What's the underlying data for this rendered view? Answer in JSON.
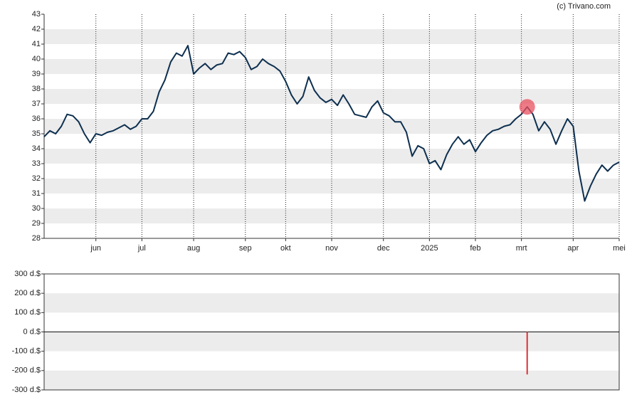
{
  "source": "(c) Trivano.com",
  "chart_data": [
    {
      "type": "line",
      "color": "#0d2f4f",
      "highlight_index": 84,
      "highlight_color": "#e8505f",
      "categories": [
        null,
        null,
        null,
        null,
        null,
        null,
        null,
        null,
        null,
        "jun",
        null,
        null,
        null,
        null,
        null,
        null,
        null,
        "jul",
        null,
        null,
        null,
        null,
        null,
        null,
        null,
        null,
        "aug",
        null,
        null,
        null,
        null,
        null,
        null,
        null,
        null,
        "sep",
        null,
        null,
        null,
        null,
        null,
        null,
        "okt",
        null,
        null,
        null,
        null,
        null,
        null,
        null,
        "nov",
        null,
        null,
        null,
        null,
        null,
        null,
        null,
        null,
        "dec",
        null,
        null,
        null,
        null,
        null,
        null,
        null,
        "2025",
        null,
        null,
        null,
        null,
        null,
        null,
        null,
        "feb",
        null,
        null,
        null,
        null,
        null,
        null,
        null,
        "mrt",
        null,
        null,
        null,
        null,
        null,
        null,
        null,
        null,
        "apr",
        null,
        null,
        null,
        null,
        null,
        null,
        null,
        "mei"
      ],
      "values": [
        34.8,
        35.2,
        35.0,
        35.5,
        36.3,
        36.2,
        35.8,
        35.0,
        34.4,
        35.0,
        34.9,
        35.1,
        35.2,
        35.4,
        35.6,
        35.3,
        35.5,
        36.0,
        36.0,
        36.5,
        37.8,
        38.6,
        39.8,
        40.4,
        40.2,
        40.9,
        39.0,
        39.4,
        39.7,
        39.3,
        39.6,
        39.7,
        40.4,
        40.3,
        40.5,
        40.1,
        39.3,
        39.5,
        40.0,
        39.7,
        39.5,
        39.2,
        38.5,
        37.6,
        37.0,
        37.5,
        38.8,
        37.9,
        37.4,
        37.1,
        37.3,
        36.9,
        37.6,
        37.0,
        36.3,
        36.2,
        36.1,
        36.8,
        37.2,
        36.4,
        36.2,
        35.8,
        35.8,
        35.1,
        33.5,
        34.2,
        34.0,
        33.0,
        33.2,
        32.6,
        33.6,
        34.3,
        34.8,
        34.3,
        34.6,
        33.8,
        34.4,
        34.9,
        35.2,
        35.3,
        35.5,
        35.6,
        36.0,
        36.3,
        36.8,
        36.3,
        35.2,
        35.8,
        35.3,
        34.3,
        35.2,
        36.0,
        35.5,
        32.5,
        30.5,
        31.5,
        32.3,
        32.9,
        32.5,
        32.9,
        33.1
      ],
      "ylim": [
        28,
        43
      ],
      "yticks": [
        28,
        29,
        30,
        31,
        32,
        33,
        34,
        35,
        36,
        37,
        38,
        39,
        40,
        41,
        42,
        43
      ],
      "grid": true
    },
    {
      "type": "bar",
      "color": "#e0303a",
      "values": [
        null,
        null,
        null,
        null,
        null,
        null,
        null,
        null,
        null,
        null,
        null,
        null,
        null,
        null,
        null,
        null,
        null,
        null,
        null,
        null,
        null,
        null,
        null,
        null,
        null,
        null,
        null,
        null,
        null,
        null,
        null,
        null,
        null,
        null,
        null,
        null,
        null,
        null,
        null,
        null,
        null,
        null,
        null,
        null,
        null,
        null,
        null,
        null,
        null,
        null,
        null,
        null,
        null,
        null,
        null,
        null,
        null,
        null,
        null,
        null,
        null,
        null,
        null,
        null,
        null,
        null,
        null,
        null,
        null,
        null,
        null,
        null,
        null,
        null,
        null,
        null,
        null,
        null,
        null,
        null,
        null,
        null,
        null,
        null,
        -220,
        null,
        null,
        null,
        null,
        null,
        null,
        null,
        null,
        null,
        null,
        null,
        null,
        null,
        null,
        null,
        null
      ],
      "ylim": [
        -300,
        300
      ],
      "yticks": [
        {
          "value": -300,
          "label": "-300 d.$"
        },
        {
          "value": -200,
          "label": "-200 d.$"
        },
        {
          "value": -100,
          "label": "-100 d.$"
        },
        {
          "value": 0,
          "label": "0 d.$"
        },
        {
          "value": 100,
          "label": "100 d.$"
        },
        {
          "value": 200,
          "label": "200 d.$"
        },
        {
          "value": 300,
          "label": "300 d.$"
        }
      ],
      "grid": true
    }
  ]
}
